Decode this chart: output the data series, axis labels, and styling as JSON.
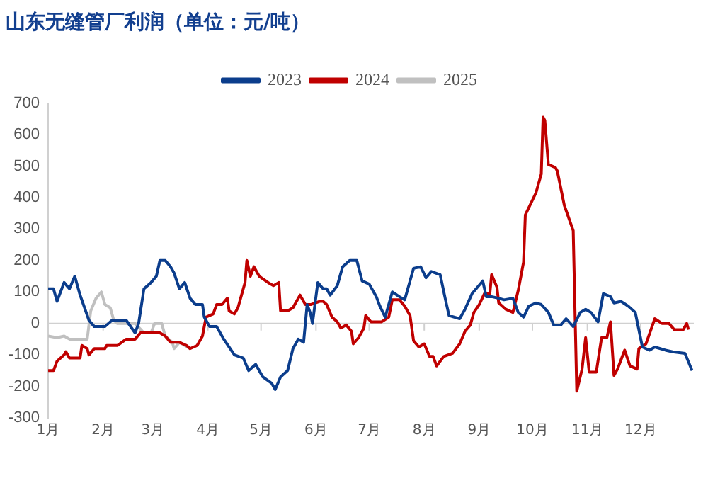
{
  "chart_data": {
    "type": "line",
    "title": "山东无缝管厂利润（单位：元/吨）",
    "xlim": [
      "--01-01",
      "--12-31"
    ],
    "xticks": [
      {
        "value": "--01-01",
        "label": "1月"
      },
      {
        "value": "--02-01",
        "label": "2月"
      },
      {
        "value": "--03-01",
        "label": "3月"
      },
      {
        "value": "--04-01",
        "label": "4月"
      },
      {
        "value": "--05-01",
        "label": "5月"
      },
      {
        "value": "--06-01",
        "label": "6月"
      },
      {
        "value": "--07-01",
        "label": "7月"
      },
      {
        "value": "--08-01",
        "label": "8月"
      },
      {
        "value": "--09-01",
        "label": "9月"
      },
      {
        "value": "--10-01",
        "label": "10月"
      },
      {
        "value": "--11-01",
        "label": "11月"
      },
      {
        "value": "--12-01",
        "label": "12月"
      }
    ],
    "ylim": [
      -300,
      700
    ],
    "yticks": [
      -300,
      -200,
      -100,
      0,
      100,
      200,
      300,
      400,
      500,
      600,
      700
    ],
    "legend": "top",
    "marker": "none",
    "line_style": "solid",
    "series": [
      {
        "name": "2023",
        "color": "#0b3d8c",
        "x": [
          "--01-01",
          "--01-04",
          "--01-06",
          "--01-10",
          "--01-13",
          "--01-16",
          "--01-19",
          "--01-24",
          "--01-27",
          "--02-02",
          "--02-06",
          "--02-14",
          "--02-19",
          "--02-21",
          "--02-24",
          "--02-28",
          "--03-03",
          "--03-05",
          "--03-08",
          "--03-11",
          "--03-13",
          "--03-16",
          "--03-19",
          "--03-22",
          "--03-25",
          "--03-29",
          "--03-30",
          "--04-02",
          "--04-06",
          "--04-10",
          "--04-16",
          "--04-21",
          "--04-24",
          "--04-28",
          "--05-02",
          "--05-07",
          "--05-09",
          "--05-12",
          "--05-16",
          "--05-19",
          "--05-22",
          "--05-25",
          "--05-27",
          "--05-29",
          "--05-30",
          "--06-02",
          "--06-05",
          "--06-07",
          "--06-09",
          "--06-13",
          "--06-16",
          "--06-20",
          "--06-24",
          "--06-27",
          "--07-01",
          "--07-05",
          "--07-07",
          "--07-10",
          "--07-14",
          "--07-18",
          "--07-21",
          "--07-24",
          "--07-26",
          "--07-30",
          "--08-02",
          "--08-05",
          "--08-10",
          "--08-13",
          "--08-15",
          "--08-21",
          "--08-24",
          "--08-28",
          "--09-03",
          "--09-05",
          "--09-08",
          "--09-12",
          "--09-15",
          "--09-20",
          "--09-23",
          "--09-26",
          "--09-29",
          "--10-03",
          "--10-06",
          "--10-10",
          "--10-13",
          "--10-17",
          "--10-20",
          "--10-24",
          "--10-28",
          "--10-31",
          "--11-03",
          "--11-07",
          "--11-10",
          "--11-14",
          "--11-16",
          "--11-20",
          "--11-24",
          "--11-28",
          "--12-02",
          "--12-06",
          "--12-09",
          "--12-15",
          "--12-19",
          "--12-26",
          "--12-30"
        ],
        "values": [
          110,
          110,
          70,
          130,
          110,
          150,
          90,
          10,
          -10,
          -10,
          10,
          10,
          -30,
          0,
          110,
          130,
          150,
          200,
          200,
          180,
          160,
          110,
          130,
          80,
          60,
          60,
          20,
          -10,
          -10,
          -50,
          -100,
          -110,
          -150,
          -130,
          -170,
          -190,
          -210,
          -170,
          -150,
          -80,
          -50,
          -60,
          60,
          30,
          0,
          130,
          110,
          110,
          90,
          120,
          180,
          200,
          200,
          135,
          125,
          85,
          55,
          20,
          100,
          85,
          75,
          135,
          175,
          180,
          145,
          165,
          155,
          75,
          25,
          15,
          45,
          95,
          135,
          85,
          85,
          80,
          75,
          80,
          35,
          20,
          55,
          65,
          60,
          35,
          -5,
          -5,
          15,
          -10,
          35,
          45,
          35,
          5,
          95,
          85,
          65,
          70,
          55,
          35,
          -75,
          -85,
          -75,
          -85,
          -90,
          -95,
          -150
        ]
      },
      {
        "name": "2024",
        "color": "#c00000",
        "x": [
          "--01-01",
          "--01-04",
          "--01-06",
          "--01-10",
          "--01-11",
          "--01-13",
          "--01-19",
          "--01-20",
          "--01-23",
          "--01-24",
          "--01-27",
          "--02-02",
          "--02-03",
          "--02-09",
          "--02-14",
          "--02-19",
          "--02-22",
          "--02-28",
          "--03-05",
          "--03-08",
          "--03-11",
          "--03-16",
          "--03-20",
          "--03-22",
          "--03-26",
          "--03-29",
          "--03-31",
          "--04-04",
          "--04-06",
          "--04-09",
          "--04-12",
          "--04-13",
          "--04-16",
          "--04-18",
          "--04-21",
          "--04-22",
          "--04-23",
          "--04-25",
          "--04-27",
          "--04-30",
          "--05-05",
          "--05-08",
          "--05-11",
          "--05-12",
          "--05-16",
          "--05-19",
          "--05-23",
          "--05-26",
          "--05-29",
          "--06-03",
          "--06-05",
          "--06-07",
          "--06-10",
          "--06-13",
          "--06-15",
          "--06-18",
          "--06-21",
          "--06-22",
          "--06-25",
          "--06-28",
          "--06-29",
          "--07-02",
          "--07-08",
          "--07-12",
          "--07-14",
          "--07-18",
          "--07-21",
          "--07-24",
          "--07-26",
          "--07-29",
          "--08-01",
          "--08-04",
          "--08-06",
          "--08-08",
          "--08-12",
          "--08-17",
          "--08-21",
          "--08-24",
          "--08-27",
          "--08-29",
          "--09-01",
          "--09-04",
          "--09-07",
          "--09-08",
          "--09-11",
          "--09-12",
          "--09-16",
          "--09-20",
          "--09-23",
          "--09-26",
          "--09-27",
          "--10-03",
          "--10-06",
          "--10-07",
          "--10-08",
          "--10-10",
          "--10-14",
          "--10-15",
          "--10-19",
          "--10-24",
          "--10-26",
          "--10-29",
          "--10-31",
          "--11-02",
          "--11-06",
          "--11-09",
          "--11-12",
          "--11-14",
          "--11-16",
          "--11-18",
          "--11-22",
          "--11-25",
          "--11-29",
          "--11-30",
          "--12-04",
          "--12-09",
          "--12-13",
          "--12-17",
          "--12-20",
          "--12-25",
          "--12-27",
          "--12-28"
        ],
        "values": [
          -150,
          -150,
          -120,
          -100,
          -90,
          -110,
          -110,
          -70,
          -80,
          -100,
          -80,
          -80,
          -70,
          -70,
          -50,
          -50,
          -30,
          -30,
          -30,
          -40,
          -60,
          -60,
          -70,
          -80,
          -70,
          -40,
          20,
          30,
          60,
          60,
          80,
          40,
          30,
          50,
          110,
          130,
          200,
          150,
          180,
          150,
          130,
          120,
          130,
          40,
          40,
          50,
          90,
          60,
          60,
          70,
          70,
          60,
          20,
          5,
          -15,
          -5,
          -25,
          -65,
          -45,
          -15,
          25,
          5,
          5,
          20,
          75,
          75,
          55,
          25,
          -55,
          -75,
          -65,
          -105,
          -105,
          -135,
          -105,
          -95,
          -65,
          -25,
          -5,
          35,
          60,
          95,
          95,
          155,
          115,
          65,
          45,
          35,
          105,
          195,
          345,
          415,
          475,
          655,
          645,
          505,
          495,
          485,
          375,
          295,
          -215,
          -145,
          -45,
          -155,
          -155,
          -45,
          -45,
          5,
          -165,
          -145,
          -85,
          -135,
          -145,
          -80,
          -65,
          15,
          0,
          0,
          -20,
          -20,
          0,
          -20
        ]
      },
      {
        "name": "2025",
        "color": "#c0c0c0",
        "x": [
          "--01-01",
          "--01-06",
          "--01-10",
          "--01-13",
          "--01-23",
          "--01-25",
          "--01-28",
          "--01-31",
          "--02-02",
          "--02-05",
          "--02-07",
          "--02-09",
          "--02-14",
          "--02-19",
          "--02-24",
          "--02-28",
          "--03-02",
          "--03-06",
          "--03-08",
          "--03-12",
          "--03-13",
          "--03-16",
          "--03-19",
          "--03-22"
        ],
        "values": [
          -40,
          -45,
          -40,
          -50,
          -50,
          40,
          80,
          100,
          60,
          50,
          10,
          0,
          0,
          0,
          -30,
          -30,
          0,
          0,
          -40,
          -60,
          -80,
          -60,
          -70,
          -80
        ]
      }
    ]
  }
}
